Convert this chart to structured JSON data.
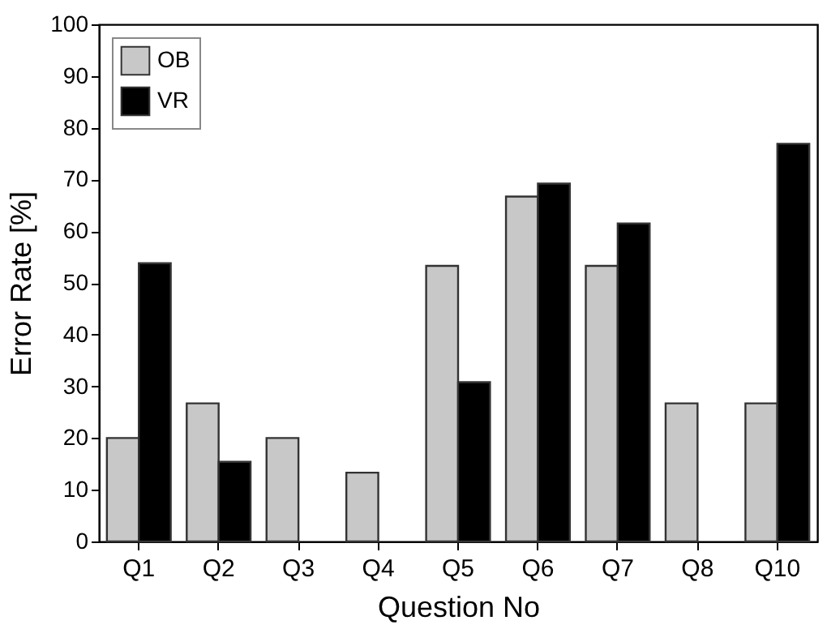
{
  "chart_data": {
    "type": "bar",
    "xlabel": "Question No",
    "ylabel": "Error Rate [%]",
    "categories": [
      "Q1",
      "Q2",
      "Q3",
      "Q4",
      "Q5",
      "Q6",
      "Q7",
      "Q8",
      "Q10"
    ],
    "series": [
      {
        "name": "OB",
        "color": "#c8c8c8",
        "values": [
          20,
          26.7,
          20,
          13.3,
          53.3,
          66.7,
          53.3,
          26.7,
          26.7
        ]
      },
      {
        "name": "VR",
        "color": "#000000",
        "values": [
          53.8,
          15.4,
          0,
          0,
          30.8,
          69.2,
          61.5,
          0,
          76.9
        ]
      }
    ],
    "ylim": [
      0,
      100
    ],
    "yticks": [
      0,
      10,
      20,
      30,
      40,
      50,
      60,
      70,
      80,
      90,
      100
    ],
    "grid": false,
    "legend": "top left"
  }
}
